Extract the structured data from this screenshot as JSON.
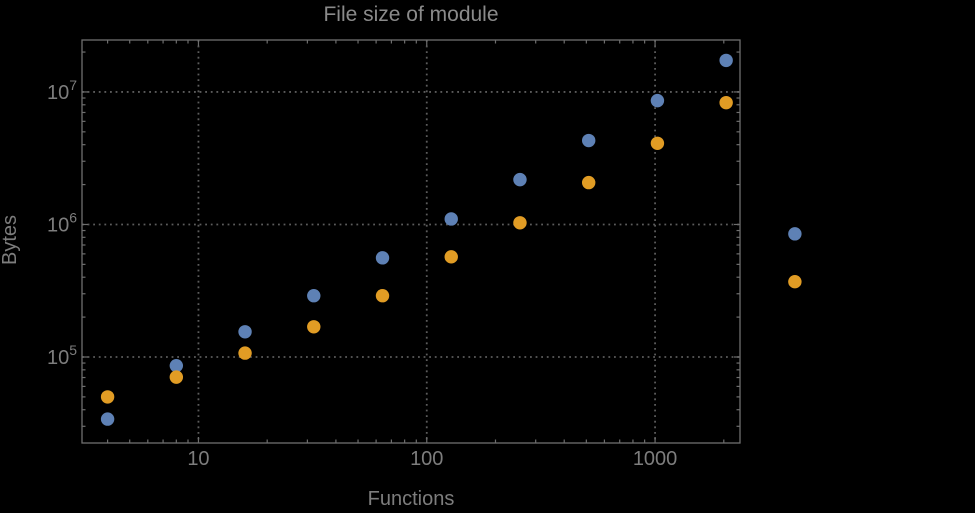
{
  "chart_data": {
    "type": "scatter",
    "title": "File size of module",
    "xlabel": "Functions",
    "ylabel": "Bytes",
    "xscale": "log",
    "yscale": "log",
    "xlim": [
      3.09,
      2355
    ],
    "ylim": [
      22440,
      24660000
    ],
    "grid": "dotted-major-decades",
    "legend": "none",
    "x": [
      4,
      8,
      16,
      32,
      64,
      128,
      256,
      512,
      1024,
      2048,
      4096
    ],
    "series": [
      {
        "name": "blue",
        "color": "#5E81B5",
        "values": [
          34000,
          86000,
          155000,
          290000,
          560000,
          1100000,
          2180000,
          4300000,
          8600000,
          17300000,
          850000
        ]
      },
      {
        "name": "orange",
        "color": "#E19C24",
        "values": [
          50000,
          70500,
          107000,
          169000,
          290000,
          570000,
          1030000,
          2070000,
          4100000,
          8300000,
          370000
        ]
      }
    ],
    "x_ticks": [
      {
        "value": 10,
        "label": "10"
      },
      {
        "value": 100,
        "label": "100"
      },
      {
        "value": 1000,
        "label": "1000"
      }
    ],
    "y_ticks": [
      {
        "value": 100000,
        "base": "10",
        "exp": "5"
      },
      {
        "value": 1000000,
        "base": "10",
        "exp": "6"
      },
      {
        "value": 10000000,
        "base": "10",
        "exp": "7"
      }
    ]
  },
  "colors": {
    "background": "#000000",
    "frame": "#6e6e6e",
    "grid": "#5c5c5c",
    "title_text": "#8a8a8a",
    "label_text": "#7d7d7d",
    "tick_text": "#7d7d7d",
    "series_blue": "#5E81B5",
    "series_orange": "#E19C24"
  }
}
